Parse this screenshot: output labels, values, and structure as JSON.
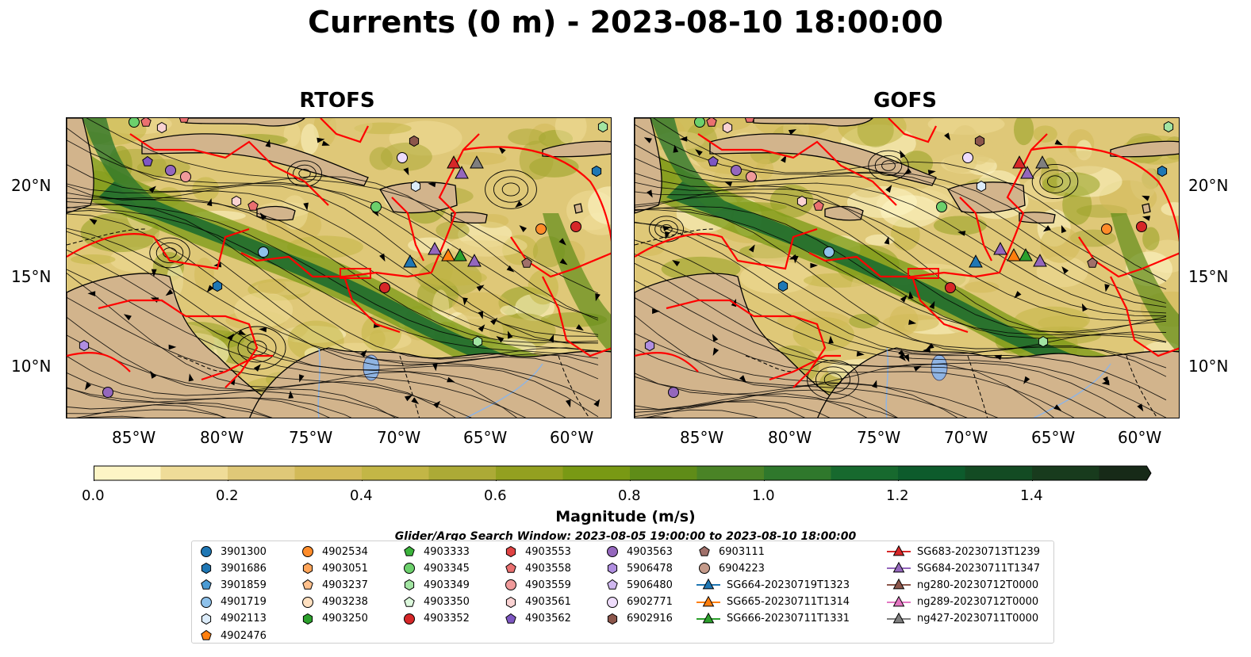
{
  "title": "Currents (0 m) - 2023-08-10 18:00:00",
  "panels": [
    {
      "name": "RTOFS"
    },
    {
      "name": "GOFS"
    }
  ],
  "lat_labels": [
    "20°N",
    "15°N",
    "10°N"
  ],
  "lon_labels": [
    "85°W",
    "80°W",
    "75°W",
    "70°W",
    "65°W",
    "60°W"
  ],
  "colorbar": {
    "label": "Magnitude (m/s)",
    "ticks": [
      "0.0",
      "0.2",
      "0.4",
      "0.6",
      "0.8",
      "1.0",
      "1.2",
      "1.4"
    ],
    "min": 0.0,
    "max": 1.5,
    "step": 0.1,
    "colors": [
      "#fdf5c6",
      "#efdc98",
      "#dfc878",
      "#d2ba58",
      "#c3b646",
      "#acaa36",
      "#93a020",
      "#799914",
      "#5f8c18",
      "#4a8326",
      "#2f782c",
      "#17692e",
      "#0d5b2c",
      "#134b23",
      "#183b1d",
      "#172a18"
    ],
    "extend": "max"
  },
  "legend": {
    "title": "Glider/Argo Search Window: 2023-08-05 19:00:00 to 2023-08-10 18:00:00",
    "columns": [
      [
        {
          "label": "3901300",
          "marker": "circle",
          "color": "#1f77b4"
        },
        {
          "label": "3901686",
          "marker": "hexagon",
          "color": "#1f77b4"
        },
        {
          "label": "3901859",
          "marker": "pentagon",
          "color": "#4b9bd4"
        },
        {
          "label": "4901719",
          "marker": "circle",
          "color": "#8ec1ea"
        },
        {
          "label": "4902113",
          "marker": "hexagon",
          "color": "#dcecfa"
        },
        {
          "label": "4902476",
          "marker": "pentagon",
          "color": "#ff7f0e"
        }
      ],
      [
        {
          "label": "4902534",
          "marker": "circle",
          "color": "#ff8c2a"
        },
        {
          "label": "4903051",
          "marker": "hexagon",
          "color": "#ffa55a"
        },
        {
          "label": "4903237",
          "marker": "pentagon",
          "color": "#ffc08c"
        },
        {
          "label": "4903238",
          "marker": "circle",
          "color": "#ffe0c0"
        },
        {
          "label": "4903250",
          "marker": "hexagon",
          "color": "#2ca02c"
        }
      ],
      [
        {
          "label": "4903333",
          "marker": "pentagon",
          "color": "#3cb43c"
        },
        {
          "label": "4903345",
          "marker": "circle",
          "color": "#6cd06c"
        },
        {
          "label": "4903349",
          "marker": "hexagon",
          "color": "#a2e4a2"
        },
        {
          "label": "4903350",
          "marker": "pentagon",
          "color": "#dcf8dc"
        },
        {
          "label": "4903352",
          "marker": "circle",
          "color": "#d62728"
        }
      ],
      [
        {
          "label": "4903553",
          "marker": "hexagon",
          "color": "#e04444"
        },
        {
          "label": "4903558",
          "marker": "pentagon",
          "color": "#ea7070"
        },
        {
          "label": "4903559",
          "marker": "circle",
          "color": "#f09a9a"
        },
        {
          "label": "4903561",
          "marker": "hexagon",
          "color": "#fad2d2"
        },
        {
          "label": "4903562",
          "marker": "pentagon",
          "color": "#7e57c2"
        }
      ],
      [
        {
          "label": "4903563",
          "marker": "circle",
          "color": "#9467bd"
        },
        {
          "label": "5906478",
          "marker": "hexagon",
          "color": "#b08ee0"
        },
        {
          "label": "5906480",
          "marker": "pentagon",
          "color": "#d0b8f0"
        },
        {
          "label": "6902771",
          "marker": "circle",
          "color": "#eedcfc"
        },
        {
          "label": "6902916",
          "marker": "hexagon",
          "color": "#8c564b"
        }
      ],
      [
        {
          "label": "6903111",
          "marker": "pentagon",
          "color": "#a0706a"
        },
        {
          "label": "6904223",
          "marker": "circle",
          "color": "#c49a8a"
        },
        {
          "label": "SG664-20230719T1323",
          "marker": "triangle-line",
          "color": "#1f77b4"
        },
        {
          "label": "SG665-20230711T1314",
          "marker": "triangle-line",
          "color": "#ff7f0e"
        },
        {
          "label": "SG666-20230711T1331",
          "marker": "triangle-line",
          "color": "#2ca02c"
        }
      ],
      [
        {
          "label": "SG683-20230713T1239",
          "marker": "triangle-line",
          "color": "#d62728"
        },
        {
          "label": "SG684-20230711T1347",
          "marker": "triangle-line",
          "color": "#9467bd"
        },
        {
          "label": "ng280-20230712T0000",
          "marker": "triangle-line",
          "color": "#8c564b"
        },
        {
          "label": "ng289-20230712T0000",
          "marker": "triangle-line",
          "color": "#e377c2"
        },
        {
          "label": "ng427-20230711T0000",
          "marker": "triangle-line",
          "color": "#7f7f7f"
        }
      ]
    ]
  },
  "colors": {
    "land": "#d2b48c",
    "glider_track": "#ff0000",
    "streamline": "#000000",
    "lake": "#8fb4e3"
  }
}
